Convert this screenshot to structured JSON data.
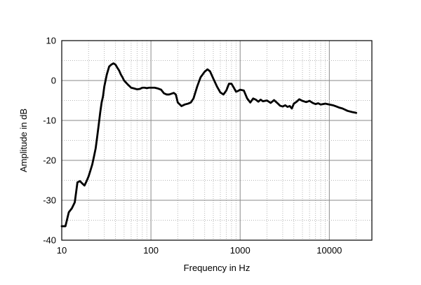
{
  "chart_data": {
    "type": "line",
    "title": "",
    "xlabel": "Frequency in Hz",
    "ylabel": "Amplitude in dB",
    "x_scale": "log",
    "xlim": [
      10,
      30000
    ],
    "ylim": [
      -40,
      10
    ],
    "x_ticks": [
      {
        "value": 10,
        "label": "10"
      },
      {
        "value": 100,
        "label": "100"
      },
      {
        "value": 1000,
        "label": "1000"
      },
      {
        "value": 10000,
        "label": "10000"
      }
    ],
    "y_ticks": [
      {
        "value": 10,
        "label": "10"
      },
      {
        "value": 0,
        "label": "0"
      },
      {
        "value": -10,
        "label": "-10"
      },
      {
        "value": -20,
        "label": "-20"
      },
      {
        "value": -30,
        "label": "-30"
      },
      {
        "value": -40,
        "label": "-40"
      }
    ],
    "grid": true,
    "colors": {
      "line": "#000000",
      "grid": "#8a8a8a",
      "minor_grid": "#b5b5b5",
      "frame": "#000000"
    },
    "series": [
      {
        "x": [
          10,
          11,
          12,
          13,
          14,
          15,
          16,
          17,
          18,
          19,
          20,
          21,
          22,
          23,
          24,
          25,
          26,
          27,
          28,
          29,
          30,
          32,
          34,
          36,
          38,
          40,
          42,
          44,
          46,
          48,
          50,
          55,
          60,
          65,
          70,
          75,
          80,
          85,
          90,
          95,
          100,
          110,
          120,
          130,
          140,
          150,
          160,
          170,
          180,
          190,
          200,
          220,
          240,
          260,
          280,
          300,
          330,
          360,
          400,
          430,
          460,
          500,
          550,
          600,
          650,
          700,
          750,
          800,
          850,
          900,
          950,
          1000,
          1100,
          1200,
          1300,
          1400,
          1500,
          1600,
          1700,
          1800,
          2000,
          2200,
          2400,
          2600,
          2800,
          3000,
          3200,
          3400,
          3600,
          3800,
          4000,
          4300,
          4600,
          5000,
          5500,
          6000,
          6500,
          7000,
          7500,
          8000,
          9000,
          10000,
          11000,
          12000,
          13000,
          14000,
          15000,
          16000,
          18000,
          20000
        ],
        "y": [
          -36.5,
          -36.5,
          -33,
          -32,
          -30.5,
          -25.5,
          -25.2,
          -25.8,
          -26.3,
          -25.2,
          -24,
          -22.5,
          -21,
          -19,
          -17,
          -14,
          -11,
          -8,
          -5.5,
          -4,
          -1.5,
          1.5,
          3.5,
          4,
          4.3,
          4,
          3.2,
          2.5,
          1.5,
          0.8,
          0,
          -1,
          -1.8,
          -2,
          -2.2,
          -2.1,
          -1.8,
          -1.8,
          -1.9,
          -1.8,
          -1.8,
          -1.8,
          -2,
          -2.3,
          -3.2,
          -3.5,
          -3.5,
          -3.3,
          -3.1,
          -3.5,
          -5.5,
          -6.4,
          -6,
          -5.8,
          -5.5,
          -4.5,
          -1.5,
          0.8,
          2.2,
          2.8,
          2.3,
          0.5,
          -1.5,
          -3,
          -3.5,
          -2.5,
          -0.8,
          -0.8,
          -1.8,
          -2.8,
          -2.6,
          -2.3,
          -2.5,
          -4.5,
          -5.5,
          -4.5,
          -4.8,
          -5.3,
          -4.8,
          -5.2,
          -5,
          -5.6,
          -4.9,
          -5.6,
          -6.3,
          -6.5,
          -6.2,
          -6.6,
          -6.4,
          -7,
          -5.8,
          -5.3,
          -4.7,
          -5.1,
          -5.4,
          -5.1,
          -5.6,
          -5.9,
          -5.7,
          -6,
          -5.8,
          -6,
          -6.2,
          -6.5,
          -6.8,
          -7,
          -7.3,
          -7.6,
          -7.9,
          -8.1
        ]
      }
    ]
  }
}
